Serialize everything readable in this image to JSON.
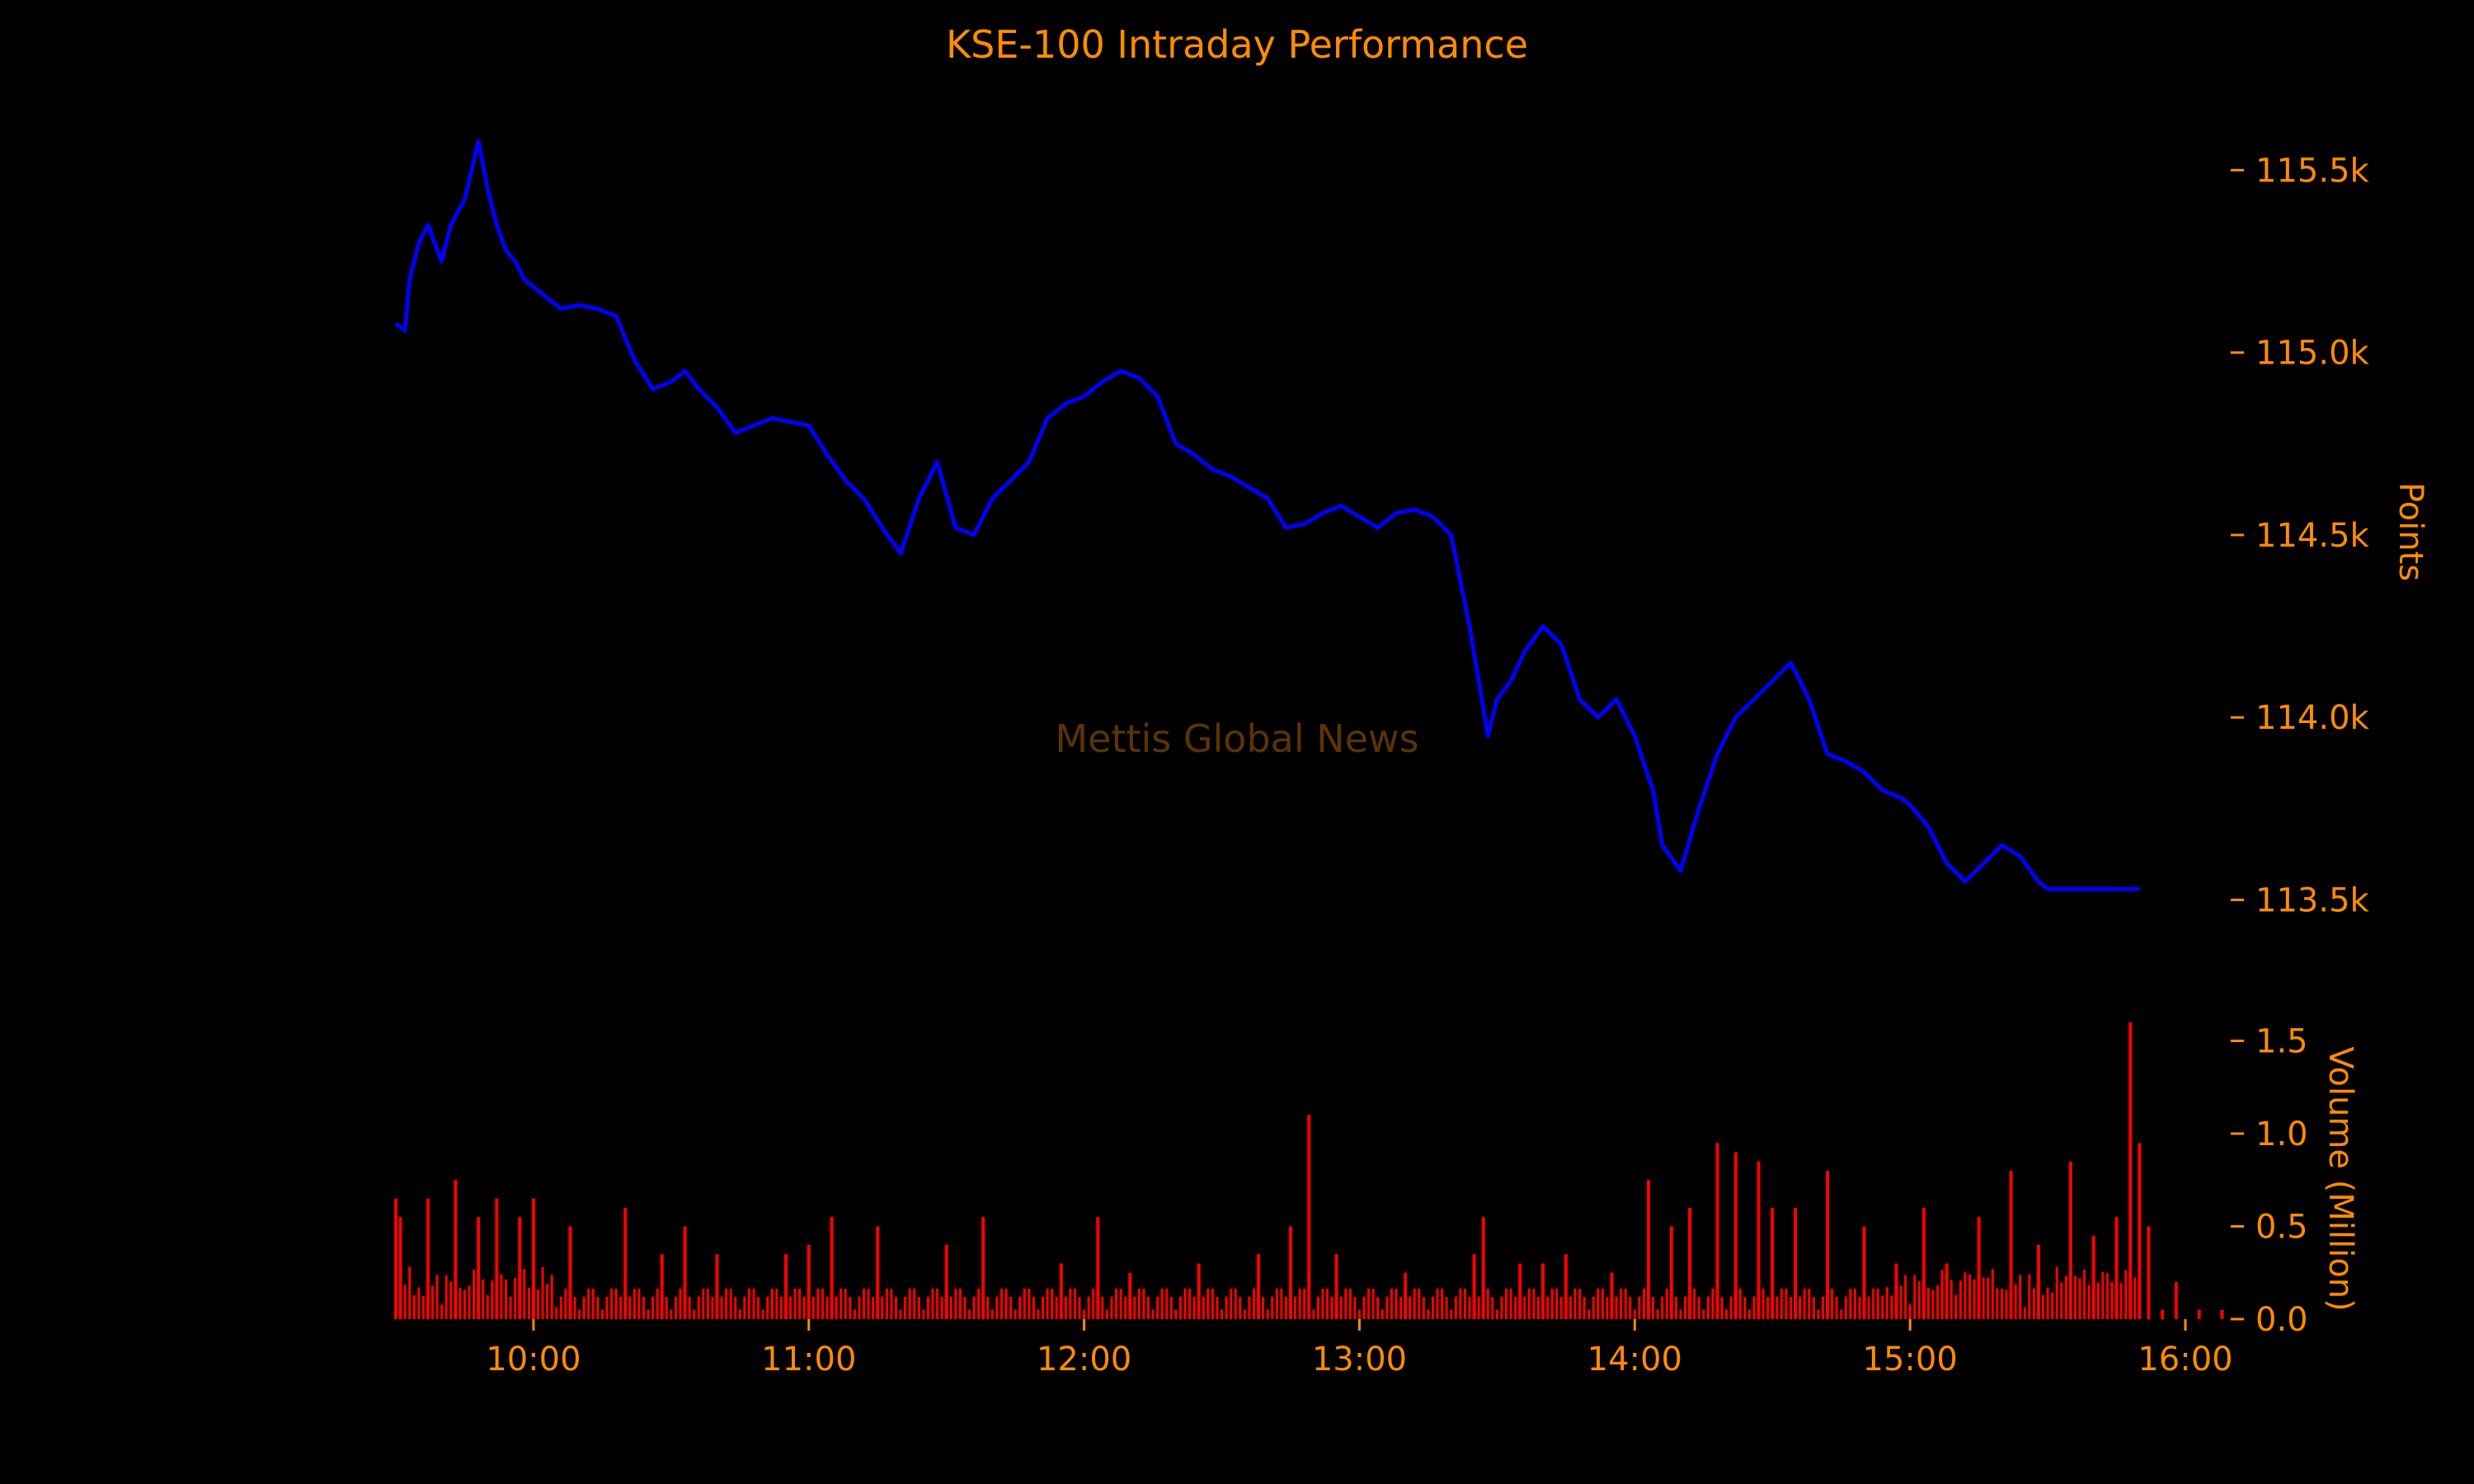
{
  "chart_data": {
    "type": "line",
    "title": "KSE-100 Intraday Performance",
    "watermark": "Mettis Global News",
    "colors": {
      "text": "#ff8c00",
      "line": "#0000ff",
      "volume": "#ff0000",
      "background": "#000000",
      "watermark": "#5c3306"
    },
    "x_ticks": [
      "10:00",
      "11:00",
      "12:00",
      "13:00",
      "14:00",
      "15:00",
      "16:00"
    ],
    "price": {
      "ylabel": "Points",
      "ylim": [
        113300,
        115650
      ],
      "y_ticks": [
        "113.5k",
        "114.0k",
        "114.5k",
        "115.0k",
        "115.5k"
      ],
      "y_tick_values": [
        113500,
        114000,
        114500,
        115000,
        115500
      ],
      "series": [
        {
          "x": [
            "09:30",
            "09:32",
            "09:33",
            "09:35",
            "09:37",
            "09:40",
            "09:42",
            "09:45",
            "09:48",
            "09:50",
            "09:52",
            "09:54",
            "09:56",
            "09:58",
            "10:00",
            "10:03",
            "10:06",
            "10:10",
            "10:14",
            "10:18",
            "10:22",
            "10:26",
            "10:30",
            "10:33",
            "10:36",
            "10:40",
            "10:44",
            "10:48",
            "10:52",
            "10:56",
            "11:00",
            "11:04",
            "11:08",
            "11:12",
            "11:16",
            "11:20",
            "11:24",
            "11:28",
            "11:32",
            "11:36",
            "11:40",
            "11:44",
            "11:48",
            "11:52",
            "11:56",
            "12:00",
            "12:04",
            "12:08",
            "12:12",
            "12:16",
            "12:20",
            "12:24",
            "12:28",
            "12:32",
            "12:36",
            "12:40",
            "12:44",
            "12:48",
            "12:52",
            "12:56",
            "13:00",
            "13:04",
            "13:08",
            "13:12",
            "13:16",
            "13:20",
            "13:24",
            "13:28",
            "13:30",
            "13:33",
            "13:36",
            "13:40",
            "13:44",
            "13:48",
            "13:52",
            "13:56",
            "14:00",
            "14:04",
            "14:06",
            "14:10",
            "14:14",
            "14:18",
            "14:22",
            "14:26",
            "14:30",
            "14:34",
            "14:38",
            "14:42",
            "14:46",
            "14:50",
            "14:54",
            "14:58",
            "15:00",
            "15:04",
            "15:08",
            "15:12",
            "15:16",
            "15:20",
            "15:24",
            "15:28",
            "15:30",
            "15:40",
            "15:50"
          ],
          "y": [
            115080,
            115060,
            115200,
            115300,
            115350,
            115250,
            115350,
            115420,
            115580,
            115450,
            115350,
            115280,
            115250,
            115200,
            115180,
            115150,
            115120,
            115130,
            115120,
            115100,
            114980,
            114900,
            114920,
            114950,
            114900,
            114850,
            114780,
            114800,
            114820,
            114810,
            114800,
            114720,
            114650,
            114600,
            114520,
            114450,
            114600,
            114700,
            114520,
            114500,
            114600,
            114650,
            114700,
            114820,
            114860,
            114880,
            114920,
            114950,
            114930,
            114880,
            114750,
            114720,
            114680,
            114660,
            114630,
            114600,
            114520,
            114530,
            114560,
            114580,
            114550,
            114520,
            114560,
            114570,
            114550,
            114500,
            114250,
            113950,
            114050,
            114100,
            114180,
            114250,
            114200,
            114050,
            114000,
            114050,
            113950,
            113800,
            113650,
            113580,
            113750,
            113900,
            114000,
            114050,
            114100,
            114150,
            114050,
            113900,
            113880,
            113850,
            113800,
            113780,
            113760,
            113700,
            113600,
            113550,
            113600,
            113650,
            113620,
            113550,
            113530,
            113530,
            113530
          ]
        }
      ]
    },
    "volume": {
      "ylabel": "Volume (Million)",
      "ylim": [
        0,
        1.6
      ],
      "y_ticks": [
        "0.0",
        "0.5",
        "1.0",
        "1.5"
      ],
      "y_tick_values": [
        0,
        0.5,
        1.0,
        1.5
      ],
      "spikes": [
        {
          "x": "09:30",
          "v": 0.65
        },
        {
          "x": "09:31",
          "v": 0.55
        },
        {
          "x": "09:37",
          "v": 0.65
        },
        {
          "x": "09:43",
          "v": 0.75
        },
        {
          "x": "09:48",
          "v": 0.55
        },
        {
          "x": "09:52",
          "v": 0.65
        },
        {
          "x": "09:57",
          "v": 0.55
        },
        {
          "x": "10:00",
          "v": 0.65
        },
        {
          "x": "10:08",
          "v": 0.5
        },
        {
          "x": "10:20",
          "v": 0.6
        },
        {
          "x": "10:28",
          "v": 0.35
        },
        {
          "x": "10:33",
          "v": 0.5
        },
        {
          "x": "10:40",
          "v": 0.35
        },
        {
          "x": "10:55",
          "v": 0.35
        },
        {
          "x": "11:00",
          "v": 0.4
        },
        {
          "x": "11:05",
          "v": 0.55
        },
        {
          "x": "11:15",
          "v": 0.5
        },
        {
          "x": "11:30",
          "v": 0.4
        },
        {
          "x": "11:38",
          "v": 0.55
        },
        {
          "x": "11:55",
          "v": 0.3
        },
        {
          "x": "12:03",
          "v": 0.55
        },
        {
          "x": "12:10",
          "v": 0.25
        },
        {
          "x": "12:25",
          "v": 0.3
        },
        {
          "x": "12:38",
          "v": 0.35
        },
        {
          "x": "12:45",
          "v": 0.5
        },
        {
          "x": "12:49",
          "v": 1.1
        },
        {
          "x": "12:55",
          "v": 0.35
        },
        {
          "x": "13:10",
          "v": 0.25
        },
        {
          "x": "13:25",
          "v": 0.35
        },
        {
          "x": "13:27",
          "v": 0.55
        },
        {
          "x": "13:35",
          "v": 0.3
        },
        {
          "x": "13:40",
          "v": 0.3
        },
        {
          "x": "13:45",
          "v": 0.35
        },
        {
          "x": "13:55",
          "v": 0.25
        },
        {
          "x": "14:03",
          "v": 0.75
        },
        {
          "x": "14:08",
          "v": 0.5
        },
        {
          "x": "14:12",
          "v": 0.6
        },
        {
          "x": "14:18",
          "v": 0.95
        },
        {
          "x": "14:22",
          "v": 0.9
        },
        {
          "x": "14:27",
          "v": 0.85
        },
        {
          "x": "14:30",
          "v": 0.6
        },
        {
          "x": "14:35",
          "v": 0.6
        },
        {
          "x": "14:42",
          "v": 0.8
        },
        {
          "x": "14:50",
          "v": 0.5
        },
        {
          "x": "14:57",
          "v": 0.3
        },
        {
          "x": "15:03",
          "v": 0.6
        },
        {
          "x": "15:08",
          "v": 0.3
        },
        {
          "x": "15:15",
          "v": 0.55
        },
        {
          "x": "15:22",
          "v": 0.8
        },
        {
          "x": "15:28",
          "v": 0.4
        },
        {
          "x": "15:35",
          "v": 0.85
        },
        {
          "x": "15:40",
          "v": 0.45
        },
        {
          "x": "15:45",
          "v": 0.55
        },
        {
          "x": "15:48",
          "v": 1.6
        },
        {
          "x": "15:50",
          "v": 0.95
        },
        {
          "x": "15:52",
          "v": 0.5
        },
        {
          "x": "15:55",
          "v": 0.05
        },
        {
          "x": "15:58",
          "v": 0.2
        },
        {
          "x": "16:03",
          "v": 0.05
        },
        {
          "x": "16:08",
          "v": 0.05
        }
      ]
    }
  }
}
